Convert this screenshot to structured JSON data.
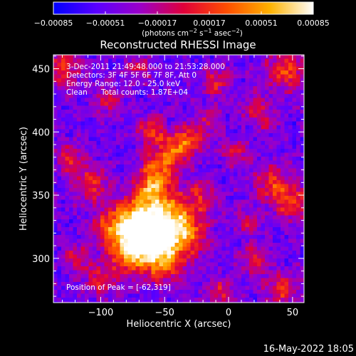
{
  "chart_data": {
    "type": "heatmap",
    "title": "Reconstructed RHESSI Image",
    "xlabel": "Heliocentric X (arcsec)",
    "ylabel": "Heliocentric Y (arcsec)",
    "xlim": [
      -137,
      59
    ],
    "ylim": [
      265,
      461
    ],
    "x_ticks": [
      -100,
      -50,
      0,
      50
    ],
    "x_tick_labels": [
      "−100",
      "−50",
      "0",
      "50"
    ],
    "y_ticks": [
      300,
      350,
      400,
      450
    ],
    "y_tick_labels": [
      "300",
      "350",
      "400",
      "450"
    ],
    "colorbar": {
      "range": [
        -0.00085,
        0.00085
      ],
      "ticks": [
        -0.00085,
        -0.00051,
        -0.00017,
        0.00017,
        0.00051,
        0.00085
      ],
      "tick_labels": [
        "−0.00085",
        "−0.00051",
        "−0.00017",
        "0.00017",
        "0.00051",
        "0.00085"
      ],
      "unit_parts": [
        "(photons cm",
        "−2",
        " s",
        "−1",
        " asec",
        "−2",
        ")"
      ],
      "stops": [
        "#0000ff",
        "#5a00ff",
        "#9b00c8",
        "#e0003a",
        "#ff4e00",
        "#ffb200",
        "#ffffff"
      ]
    },
    "annotations": {
      "time": "3-Dec-2011 21:49:48.000 to 21:53:28.000",
      "detectors": "Detectors: 3F 4F 5F 6F 7F 8F, Att 0",
      "energy": "Energy Range: 12.0 - 25.0 keV",
      "method": "Clean",
      "counts": "Total counts: 1.87E+04",
      "peak": "Position of Peak = [-62,319]"
    },
    "peak_position": [
      -62,
      319
    ],
    "grid": false,
    "legend": "colorbar-top"
  },
  "footer_timestamp": "16-May-2022 18:05"
}
